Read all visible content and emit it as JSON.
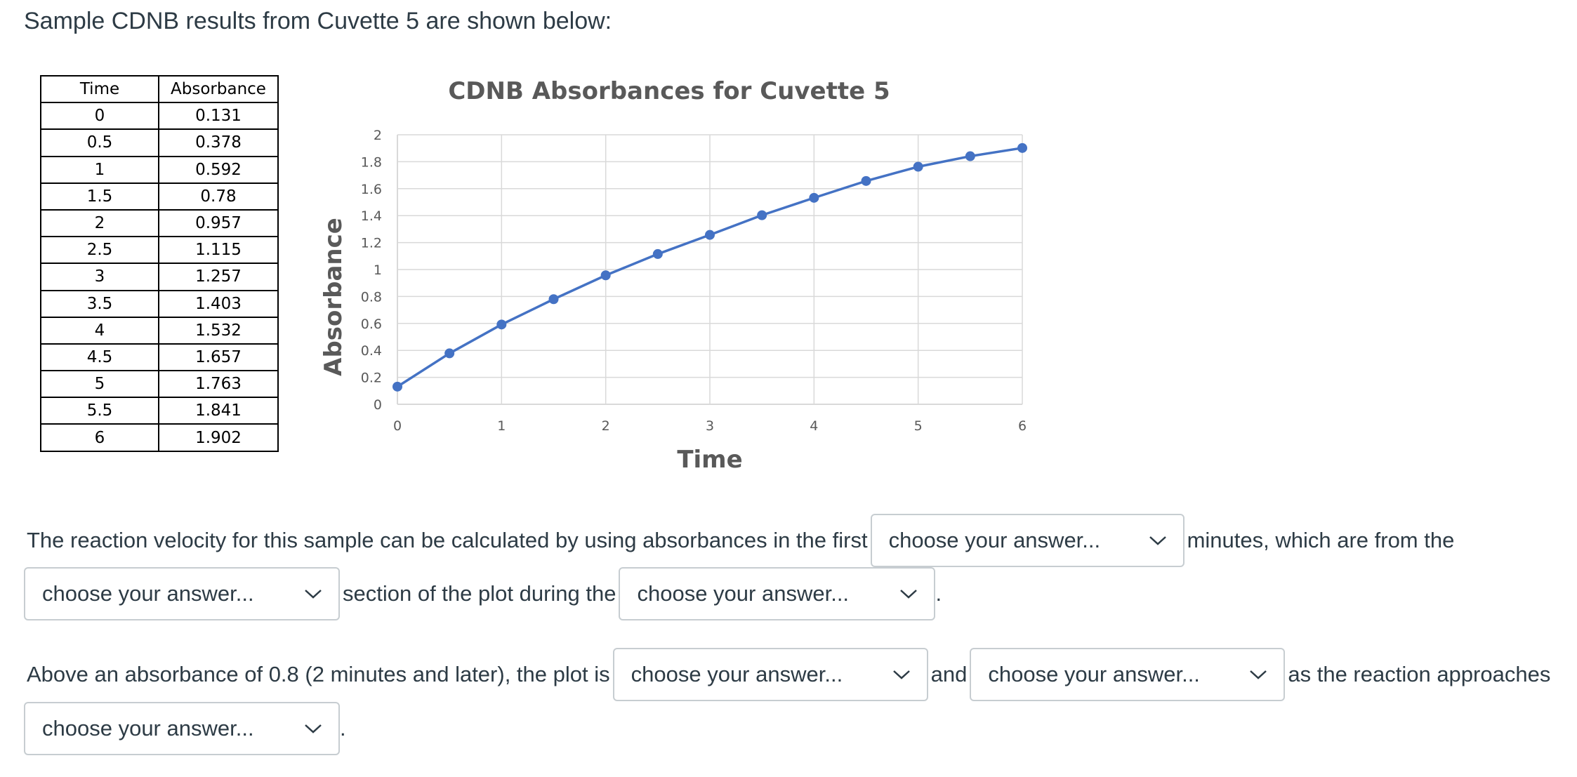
{
  "intro_text": "Sample CDNB results from Cuvette 5 are shown below:",
  "table": {
    "headers": [
      "Time",
      "Absorbance"
    ],
    "rows": [
      [
        "0",
        "0.131"
      ],
      [
        "0.5",
        "0.378"
      ],
      [
        "1",
        "0.592"
      ],
      [
        "1.5",
        "0.78"
      ],
      [
        "2",
        "0.957"
      ],
      [
        "2.5",
        "1.115"
      ],
      [
        "3",
        "1.257"
      ],
      [
        "3.5",
        "1.403"
      ],
      [
        "4",
        "1.532"
      ],
      [
        "4.5",
        "1.657"
      ],
      [
        "5",
        "1.763"
      ],
      [
        "5.5",
        "1.841"
      ],
      [
        "6",
        "1.902"
      ]
    ]
  },
  "chart_data": {
    "type": "line",
    "title": "CDNB Absorbances for Cuvette 5",
    "xlabel": "Time",
    "ylabel": "Absorbance",
    "x": [
      0,
      0.5,
      1,
      1.5,
      2,
      2.5,
      3,
      3.5,
      4,
      4.5,
      5,
      5.5,
      6
    ],
    "series": [
      {
        "values": [
          0.131,
          0.378,
          0.592,
          0.78,
          0.957,
          1.115,
          1.257,
          1.403,
          1.532,
          1.657,
          1.763,
          1.841,
          1.902
        ]
      }
    ],
    "xlim": [
      0,
      6
    ],
    "ylim": [
      0,
      2
    ],
    "xticks": [
      "0",
      "1",
      "2",
      "3",
      "4",
      "5",
      "6"
    ],
    "yticks": [
      "0",
      "0.2",
      "0.4",
      "0.6",
      "0.8",
      "1",
      "1.2",
      "1.4",
      "1.6",
      "1.8",
      "2"
    ],
    "grid": true,
    "markers": true,
    "color": "#4472c4"
  },
  "questions": {
    "q1": {
      "text_1": "The reaction velocity for this sample can be calculated by using absorbances in the first",
      "select_1": "choose your answer...",
      "text_2": "minutes, which are from the",
      "select_2": "choose your answer...",
      "text_3": "section of the plot during the",
      "select_3": "choose your answer...",
      "text_4": "."
    },
    "q2": {
      "text_1": "Above an absorbance of 0.8 (2 minutes and later), the plot is",
      "select_1": "choose your answer...",
      "text_2": "and",
      "select_2": "choose your answer...",
      "text_3": "as the reaction approaches",
      "select_3": "choose your answer...",
      "text_4": "."
    }
  },
  "icons": {
    "select_arrow": "chevron-down-icon"
  }
}
